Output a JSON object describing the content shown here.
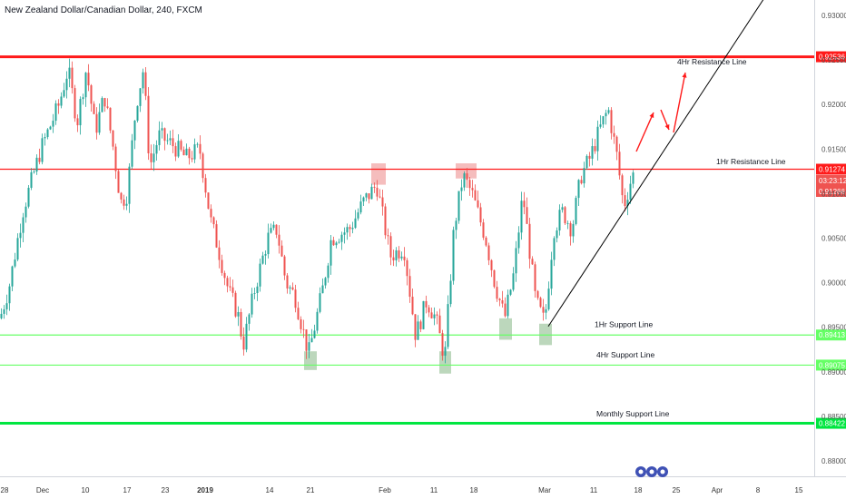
{
  "chart_data": {
    "type": "candlestick",
    "title": "New Zealand Dollar/Canadian Dollar, 240, FXCM",
    "colors": {
      "up": "#26a69a",
      "down": "#ef5350",
      "resistance": "#ff1a1a",
      "support": "#00e640",
      "support_light": "#66ff66",
      "trendline": "#000000",
      "zone": "#ef9a9a",
      "zone_support": "#8fbc8f"
    },
    "y_axis": {
      "range": [
        0.8773,
        0.9345
      ],
      "ticks": [
        "0.93000",
        "0.92500",
        "0.92000",
        "0.91500",
        "0.91000",
        "0.90500",
        "0.90000",
        "0.89500",
        "0.89000",
        "0.88500",
        "0.88000"
      ]
    },
    "x_axis": {
      "ticks": [
        "28",
        "Dec",
        "10",
        "17",
        "23",
        "2019",
        "14",
        "21",
        "Feb",
        "11",
        "18",
        "Mar",
        "11",
        "18",
        "25",
        "Apr",
        "8",
        "15"
      ]
    },
    "price_path": [
      [
        0,
        0.896
      ],
      [
        10,
        0.8995
      ],
      [
        25,
        0.908
      ],
      [
        45,
        0.915
      ],
      [
        65,
        0.92
      ],
      [
        75,
        0.924
      ],
      [
        85,
        0.918
      ],
      [
        95,
        0.924
      ],
      [
        105,
        0.917
      ],
      [
        115,
        0.921
      ],
      [
        125,
        0.915
      ],
      [
        133,
        0.909
      ],
      [
        140,
        0.91
      ],
      [
        150,
        0.92
      ],
      [
        158,
        0.924
      ],
      [
        165,
        0.913
      ],
      [
        175,
        0.9165
      ],
      [
        190,
        0.9155
      ],
      [
        205,
        0.914
      ],
      [
        220,
        0.915
      ],
      [
        232,
        0.907
      ],
      [
        240,
        0.904
      ],
      [
        252,
        0.899
      ],
      [
        262,
        0.8965
      ],
      [
        268,
        0.893
      ],
      [
        280,
        0.899
      ],
      [
        295,
        0.905
      ],
      [
        305,
        0.906
      ],
      [
        315,
        0.9
      ],
      [
        325,
        0.8985
      ],
      [
        340,
        0.892
      ],
      [
        355,
        0.899
      ],
      [
        365,
        0.905
      ],
      [
        385,
        0.906
      ],
      [
        400,
        0.909
      ],
      [
        415,
        0.911
      ],
      [
        430,
        0.903
      ],
      [
        445,
        0.904
      ],
      [
        458,
        0.894
      ],
      [
        470,
        0.898
      ],
      [
        480,
        0.896
      ],
      [
        490,
        0.8915
      ],
      [
        500,
        0.906
      ],
      [
        510,
        0.912
      ],
      [
        520,
        0.91
      ],
      [
        535,
        0.905
      ],
      [
        545,
        0.9
      ],
      [
        556,
        0.896
      ],
      [
        566,
        0.901
      ],
      [
        576,
        0.91
      ],
      [
        590,
        0.898
      ],
      [
        600,
        0.8955
      ],
      [
        610,
        0.906
      ],
      [
        620,
        0.908
      ],
      [
        630,
        0.906
      ],
      [
        640,
        0.912
      ],
      [
        650,
        0.914
      ],
      [
        660,
        0.917
      ],
      [
        670,
        0.9195
      ],
      [
        680,
        0.914
      ],
      [
        687,
        0.9085
      ],
      [
        695,
        0.9115
      ],
      [
        700,
        0.9127
      ]
    ],
    "horizontal_lines": [
      {
        "price": 0.92536,
        "label": "0.92536",
        "style": "resistance",
        "width": 3
      },
      {
        "price": 0.91274,
        "label": "0.91274",
        "style": "resistance",
        "width": 1.2
      },
      {
        "price": 0.89413,
        "label": "0.89413",
        "style": "support_light",
        "width": 1.2
      },
      {
        "price": 0.89075,
        "label": "0.89075",
        "style": "support_light",
        "width": 1.2
      },
      {
        "price": 0.88422,
        "label": "0.88422",
        "style": "support",
        "width": 3
      }
    ],
    "price_badges": [
      {
        "label": "03:23:12",
        "color": "#ef5350"
      },
      {
        "label": "0.91266",
        "color": "#ef5350"
      }
    ],
    "annotations": [
      {
        "text": "4Hr Resistance Line",
        "price": 0.9245
      },
      {
        "text": "1Hr Resistance Line",
        "price": 0.9133
      },
      {
        "text": "1Hr Support Line",
        "price": 0.895
      },
      {
        "text": "4Hr Support Line",
        "price": 0.8916
      },
      {
        "text": "Monthly Support Line",
        "price": 0.885
      }
    ],
    "trendline": {
      "from": 0.8951,
      "to": 0.9335
    },
    "zones": [
      {
        "price_top": 0.9134,
        "price_bottom": 0.911,
        "kind": "resistance"
      },
      {
        "price_top": 0.9134,
        "price_bottom": 0.9117,
        "kind": "resistance"
      },
      {
        "price_top": 0.8923,
        "price_bottom": 0.8902,
        "kind": "support"
      },
      {
        "price_top": 0.8923,
        "price_bottom": 0.8898,
        "kind": "support"
      },
      {
        "price_top": 0.896,
        "price_bottom": 0.8936,
        "kind": "support"
      },
      {
        "price_top": 0.8954,
        "price_bottom": 0.893,
        "kind": "support"
      }
    ],
    "grid": false,
    "legend": "none"
  }
}
